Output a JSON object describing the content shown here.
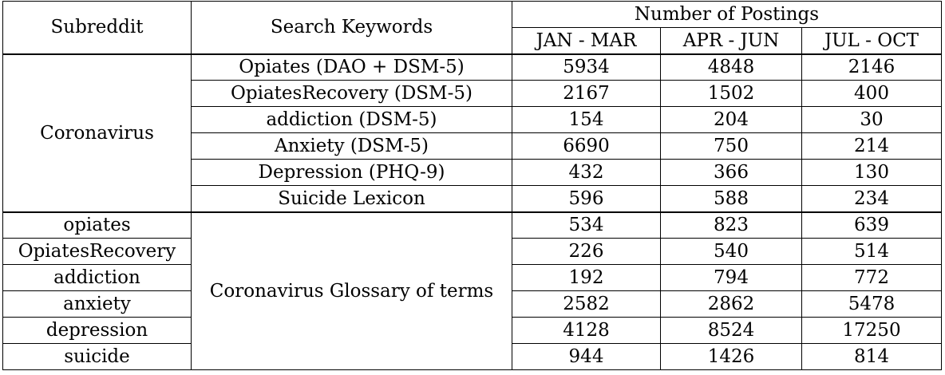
{
  "header": {
    "subreddit": "Subreddit",
    "keywords": "Search Keywords",
    "postings": "Number of Postings",
    "periods": [
      "JAN - MAR",
      "APR - JUN",
      "JUL - OCT"
    ]
  },
  "group1": {
    "subreddit": "Coronavirus",
    "rows": [
      {
        "keyword": "Opiates (DAO + DSM-5)",
        "v": [
          "5934",
          "4848",
          "2146"
        ]
      },
      {
        "keyword": "OpiatesRecovery (DSM-5)",
        "v": [
          "2167",
          "1502",
          "400"
        ]
      },
      {
        "keyword": "addiction (DSM-5)",
        "v": [
          "154",
          "204",
          "30"
        ]
      },
      {
        "keyword": "Anxiety (DSM-5)",
        "v": [
          "6690",
          "750",
          "214"
        ]
      },
      {
        "keyword": "Depression (PHQ-9)",
        "v": [
          "432",
          "366",
          "130"
        ]
      },
      {
        "keyword": "Suicide Lexicon",
        "v": [
          "596",
          "588",
          "234"
        ]
      }
    ]
  },
  "group2": {
    "keyword": "Coronavirus Glossary of terms",
    "rows": [
      {
        "subreddit": "opiates",
        "v": [
          "534",
          "823",
          "639"
        ]
      },
      {
        "subreddit": "OpiatesRecovery",
        "v": [
          "226",
          "540",
          "514"
        ]
      },
      {
        "subreddit": "addiction",
        "v": [
          "192",
          "794",
          "772"
        ]
      },
      {
        "subreddit": "anxiety",
        "v": [
          "2582",
          "2862",
          "5478"
        ]
      },
      {
        "subreddit": "depression",
        "v": [
          "4128",
          "8524",
          "17250"
        ]
      },
      {
        "subreddit": "suicide",
        "v": [
          "944",
          "1426",
          "814"
        ]
      }
    ]
  }
}
